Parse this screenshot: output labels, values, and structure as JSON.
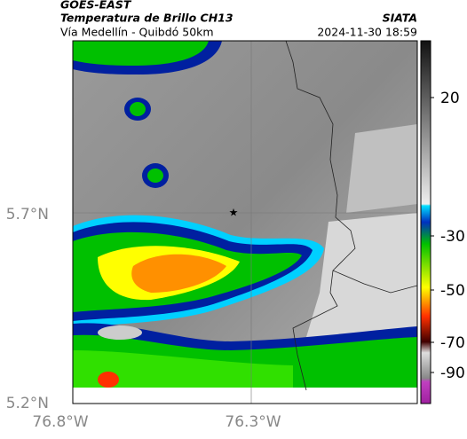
{
  "header": {
    "satellite": "GOES-EAST",
    "title": "Temperatura de Brillo CH13",
    "subtitle": "Vía Medellín - Quibdó 50km",
    "source": "SIATA",
    "datetime": "2024-11-30 18:59"
  },
  "axes": {
    "lat_labels": [
      "5.7°N",
      "5.2°N"
    ],
    "lon_labels": [
      "76.8°W",
      "76.3°W"
    ]
  },
  "colorbar": {
    "labels": [
      "20",
      "-30",
      "-50",
      "-70",
      "-90"
    ]
  }
}
